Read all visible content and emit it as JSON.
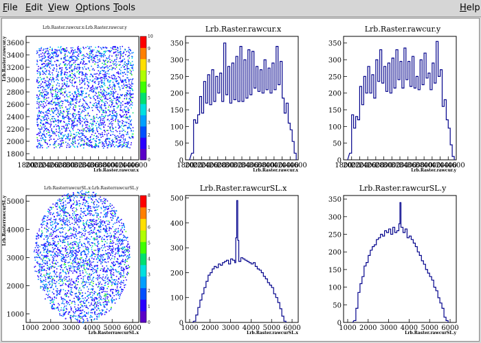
{
  "menubar": {
    "items": [
      {
        "label": "File",
        "key": "F",
        "rest": "ile"
      },
      {
        "label": "Edit",
        "key": "E",
        "rest": "dit"
      },
      {
        "label": "View",
        "key": "V",
        "rest": "iew"
      },
      {
        "label": "Options",
        "key": "O",
        "rest": "ptions"
      },
      {
        "label": "Tools",
        "key": "T",
        "rest": "ools"
      }
    ],
    "help": {
      "label": "Help",
      "key": "H",
      "rest": "elp"
    }
  },
  "chart_data": [
    {
      "type": "heatmap",
      "title": "Lrb.Raster.rawcur.x:Lrb.Raster.rawcur.y",
      "xlabel": "Lrb.Raster.rawcur.x",
      "ylabel": "Lrb.Raster.rawcur.y",
      "xlim": [
        1800,
        4600
      ],
      "ylim": [
        1700,
        3700
      ],
      "xticks": [
        "1800",
        "2000",
        "2200",
        "2400",
        "2600",
        "2800",
        "3000",
        "3200",
        "3400",
        "3600",
        "3800",
        "4000",
        "4200",
        "4400",
        "4600"
      ],
      "yticks": [
        "1800",
        "2000",
        "2200",
        "2400",
        "2600",
        "2800",
        "3000",
        "3200",
        "3400",
        "3600"
      ],
      "palette_ticks": [
        "0",
        "1",
        "2",
        "3",
        "4",
        "5",
        "6",
        "7",
        "8",
        "9",
        "10"
      ],
      "zlim": [
        0,
        10
      ],
      "shape": "rectangle",
      "region": {
        "x": [
          2050,
          4450
        ],
        "y": [
          1900,
          3550
        ]
      }
    },
    {
      "type": "bar",
      "title": "Lrb.Raster.rawcur.x",
      "xlabel": "Lrb.Raster.rawcur.x",
      "xlim": [
        1800,
        4600
      ],
      "ylim": [
        0,
        370
      ],
      "xticks": [
        "1800",
        "2000",
        "2200",
        "2400",
        "2600",
        "2800",
        "3000",
        "3200",
        "3400",
        "3600",
        "3800",
        "4000",
        "4200",
        "4400",
        "4600"
      ],
      "yticks": [
        "0",
        "50",
        "100",
        "150",
        "200",
        "250",
        "300",
        "350"
      ],
      "x": [
        1950,
        2000,
        2050,
        2100,
        2150,
        2200,
        2250,
        2300,
        2350,
        2400,
        2450,
        2500,
        2550,
        2600,
        2650,
        2700,
        2750,
        2800,
        2850,
        2900,
        2950,
        3000,
        3050,
        3100,
        3150,
        3200,
        3250,
        3300,
        3350,
        3400,
        3450,
        3500,
        3550,
        3600,
        3650,
        3700,
        3750,
        3800,
        3850,
        3900,
        3950,
        4000,
        4050,
        4100,
        4150,
        4200,
        4250,
        4300,
        4350,
        4400,
        4450,
        4500
      ],
      "values": [
        20,
        120,
        110,
        135,
        190,
        140,
        235,
        170,
        255,
        165,
        270,
        175,
        250,
        200,
        260,
        175,
        350,
        195,
        280,
        170,
        290,
        180,
        310,
        175,
        340,
        175,
        300,
        185,
        330,
        195,
        325,
        215,
        280,
        205,
        270,
        200,
        300,
        210,
        275,
        200,
        290,
        210,
        340,
        225,
        295,
        185,
        140,
        170,
        110,
        90,
        55,
        20
      ]
    },
    {
      "type": "bar",
      "title": "Lrb.Raster.rawcur.y",
      "xlabel": "Lrb.Raster.rawcur.y",
      "xlim": [
        1800,
        4600
      ],
      "ylim": [
        0,
        370
      ],
      "xticks": [
        "1800",
        "2000",
        "2200",
        "2400",
        "2600",
        "2800",
        "3000",
        "3200",
        "3400",
        "3600",
        "3800",
        "4000",
        "4200",
        "4400",
        "4600"
      ],
      "yticks": [
        "0",
        "50",
        "100",
        "150",
        "200",
        "250",
        "300",
        "350"
      ],
      "x": [
        1950,
        2000,
        2050,
        2100,
        2150,
        2200,
        2250,
        2300,
        2350,
        2400,
        2450,
        2500,
        2550,
        2600,
        2650,
        2700,
        2750,
        2800,
        2850,
        2900,
        2950,
        3000,
        3050,
        3100,
        3150,
        3200,
        3250,
        3300,
        3350,
        3400,
        3450,
        3500,
        3550,
        3600,
        3650,
        3700,
        3750,
        3800,
        3850,
        3900,
        3950,
        4000,
        4050,
        4100,
        4150,
        4200,
        4250,
        4300,
        4350,
        4400,
        4450,
        4500
      ],
      "values": [
        20,
        135,
        95,
        130,
        120,
        220,
        165,
        250,
        200,
        280,
        200,
        255,
        185,
        300,
        235,
        330,
        230,
        280,
        205,
        290,
        200,
        305,
        215,
        330,
        240,
        295,
        215,
        335,
        240,
        295,
        220,
        310,
        215,
        250,
        210,
        300,
        225,
        320,
        245,
        260,
        210,
        290,
        230,
        355,
        250,
        270,
        160,
        180,
        120,
        95,
        45,
        10
      ]
    },
    {
      "type": "heatmap",
      "title": "Lrb.RasterrawcurSL.x:Lrb.RasterrawcurSL.y",
      "xlabel": "Lrb.RasterrawcurSL.x",
      "ylabel": "Lrb.RasterrawcurSL.y",
      "xlim": [
        800,
        6300
      ],
      "ylim": [
        700,
        5200
      ],
      "xticks": [
        "1000",
        "2000",
        "3000",
        "4000",
        "5000",
        "6000"
      ],
      "yticks": [
        "1000",
        "2000",
        "3000",
        "4000",
        "5000"
      ],
      "palette_ticks": [
        "0",
        "1",
        "2",
        "3",
        "4",
        "5",
        "6",
        "7",
        "8"
      ],
      "zlim": [
        0,
        8
      ],
      "shape": "disk",
      "region": {
        "cx": 3500,
        "cy": 3050,
        "r": 2350
      }
    },
    {
      "type": "bar",
      "title": "Lrb.Raster.rawcurSL.x",
      "xlabel": "Lrb.Raster.rawcurSL.x",
      "xlim": [
        800,
        6300
      ],
      "ylim": [
        0,
        510
      ],
      "xticks": [
        "1000",
        "2000",
        "3000",
        "4000",
        "5000",
        "6000"
      ],
      "yticks": [
        "0",
        "100",
        "200",
        "300",
        "400",
        "500"
      ],
      "x": [
        1200,
        1300,
        1400,
        1500,
        1600,
        1700,
        1800,
        1900,
        2000,
        2100,
        2200,
        2300,
        2400,
        2500,
        2600,
        2700,
        2800,
        2900,
        3000,
        3100,
        3200,
        3250,
        3300,
        3350,
        3400,
        3500,
        3600,
        3700,
        3800,
        3900,
        4000,
        4100,
        4200,
        4300,
        4400,
        4500,
        4600,
        4700,
        4800,
        4900,
        5000,
        5100,
        5200,
        5300,
        5400,
        5500,
        5600
      ],
      "values": [
        5,
        30,
        60,
        90,
        115,
        140,
        165,
        190,
        200,
        215,
        225,
        220,
        235,
        230,
        240,
        245,
        250,
        235,
        255,
        250,
        240,
        340,
        490,
        330,
        245,
        260,
        255,
        250,
        245,
        240,
        235,
        240,
        225,
        215,
        210,
        200,
        185,
        175,
        160,
        150,
        140,
        115,
        100,
        80,
        55,
        25,
        5
      ]
    },
    {
      "type": "bar",
      "title": "Lrb.Raster.rawcurSL.y",
      "xlabel": "Lrb.Raster.rawcurSL.y",
      "xlim": [
        800,
        6300
      ],
      "ylim": [
        0,
        360
      ],
      "xticks": [
        "1000",
        "2000",
        "3000",
        "4000",
        "5000",
        "6000"
      ],
      "yticks": [
        "0",
        "50",
        "100",
        "150",
        "200",
        "250",
        "300",
        "350"
      ],
      "x": [
        1300,
        1400,
        1500,
        1600,
        1700,
        1800,
        1900,
        2000,
        2100,
        2200,
        2300,
        2400,
        2500,
        2600,
        2700,
        2800,
        2900,
        3000,
        3100,
        3200,
        3300,
        3400,
        3500,
        3550,
        3600,
        3700,
        3800,
        3900,
        4000,
        4100,
        4200,
        4300,
        4400,
        4500,
        4600,
        4700,
        4800,
        4900,
        5000,
        5100,
        5200,
        5300,
        5400,
        5500,
        5600,
        5700,
        5800
      ],
      "values": [
        5,
        40,
        85,
        110,
        130,
        160,
        170,
        190,
        205,
        215,
        220,
        235,
        240,
        250,
        245,
        260,
        255,
        265,
        250,
        270,
        255,
        260,
        280,
        340,
        270,
        255,
        265,
        240,
        245,
        235,
        225,
        215,
        200,
        190,
        175,
        165,
        150,
        140,
        130,
        120,
        100,
        90,
        70,
        55,
        40,
        15,
        5
      ]
    }
  ]
}
